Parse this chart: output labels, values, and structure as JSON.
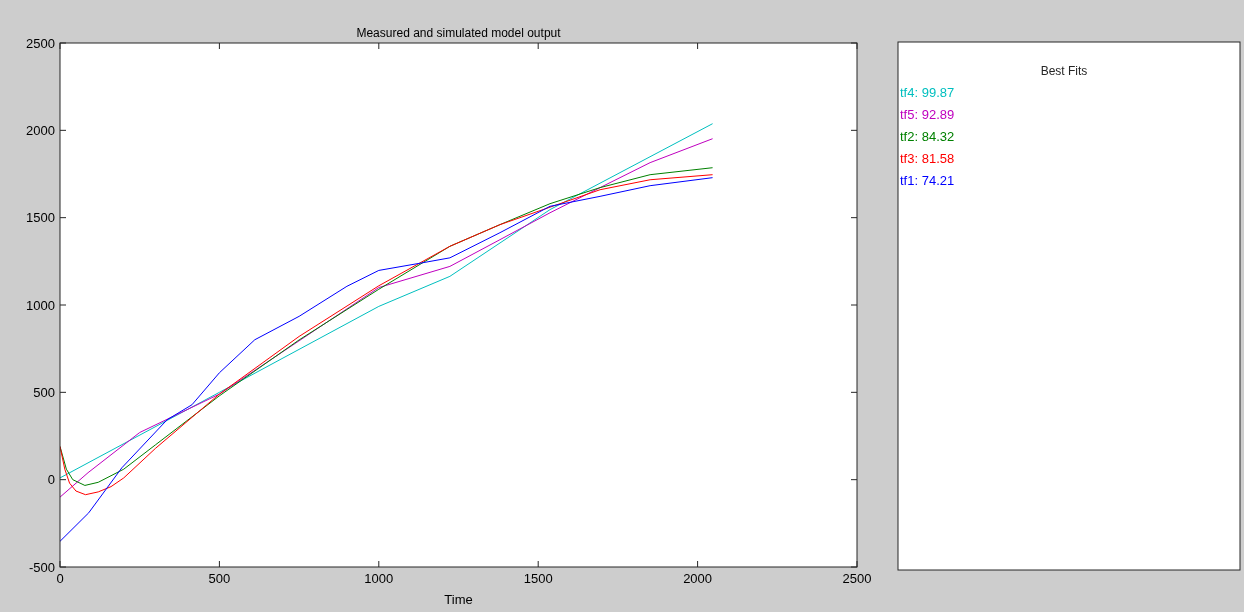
{
  "chart_data": {
    "type": "line",
    "title": "Measured and simulated model output",
    "xlabel": "Time",
    "legend_title": "Best Fits",
    "legend": "right",
    "xlim": [
      0,
      2500
    ],
    "ylim": [
      -500,
      2500
    ],
    "xticks": [
      0,
      500,
      1000,
      1500,
      2000,
      2500
    ],
    "yticks": [
      -500,
      0,
      500,
      1000,
      1500,
      2000,
      2500
    ],
    "grid": false,
    "marker": "none",
    "line_style": "solid",
    "series": [
      {
        "name": "tf4: 99.87",
        "color": "#00bfbf",
        "x": [
          0,
          500,
          1000,
          1223,
          1537,
          2047
        ],
        "values": [
          10,
          500,
          992,
          1164,
          1546,
          2038
        ]
      },
      {
        "name": "tf5: 92.89",
        "color": "#bf00bf",
        "x": [
          0,
          88,
          250,
          500,
          1000,
          1223,
          1380,
          1537,
          1694,
          1851,
          2047
        ],
        "values": [
          -100,
          40,
          270,
          490,
          1100,
          1221,
          1374,
          1528,
          1672,
          1815,
          1952
        ]
      },
      {
        "name": "tf2: 84.32",
        "color": "#008000",
        "x": [
          0,
          20,
          40,
          78,
          120,
          200,
          300,
          500,
          750,
          1000,
          1223,
          1380,
          1537,
          1694,
          1851,
          2047
        ],
        "values": [
          190,
          60,
          0,
          -33,
          -15,
          60,
          200,
          480,
          800,
          1090,
          1336,
          1460,
          1580,
          1672,
          1746,
          1786
        ]
      },
      {
        "name": "tf3: 81.58",
        "color": "#ff0000",
        "x": [
          0,
          15,
          30,
          50,
          80,
          120,
          160,
          200,
          300,
          500,
          750,
          1000,
          1223,
          1380,
          1537,
          1694,
          1851,
          2047
        ],
        "values": [
          190,
          60,
          -20,
          -65,
          -86,
          -70,
          -40,
          10,
          180,
          490,
          820,
          1110,
          1336,
          1460,
          1560,
          1660,
          1717,
          1746
        ]
      },
      {
        "name": "tf1: 74.21",
        "color": "#0000ff",
        "x": [
          0,
          90,
          194,
          336,
          414,
          500,
          611,
          750,
          900,
          1000,
          1135,
          1223,
          1380,
          1537,
          1694,
          1851,
          2047
        ],
        "values": [
          -353,
          -190,
          68,
          343,
          429,
          612,
          801,
          935,
          1107,
          1198,
          1241,
          1270,
          1414,
          1565,
          1622,
          1683,
          1729
        ]
      }
    ]
  }
}
